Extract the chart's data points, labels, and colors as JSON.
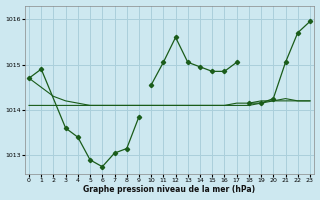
{
  "xlabel": "Graphe pression niveau de la mer (hPa)",
  "ylim": [
    1012.6,
    1016.3
  ],
  "xlim": [
    -0.3,
    23.3
  ],
  "yticks": [
    1013,
    1014,
    1015,
    1016
  ],
  "xticks": [
    0,
    1,
    2,
    3,
    4,
    5,
    6,
    7,
    8,
    9,
    10,
    11,
    12,
    13,
    14,
    15,
    16,
    17,
    18,
    19,
    20,
    21,
    22,
    23
  ],
  "bg_color": "#cde8f0",
  "grid_color": "#aacfdb",
  "line_color": "#1a5c1a",
  "series1_x": [
    0,
    1,
    3,
    4,
    5,
    6,
    7,
    8,
    9
  ],
  "series1_y": [
    1014.7,
    1014.9,
    1013.6,
    1013.4,
    1012.9,
    1012.75,
    1013.05,
    1013.15,
    1013.85
  ],
  "series2_x": [
    10,
    11,
    12,
    13,
    14,
    15,
    16,
    17
  ],
  "series2_y": [
    1014.55,
    1015.05,
    1015.6,
    1015.05,
    1014.95,
    1014.85,
    1014.85,
    1015.05
  ],
  "series3_x": [
    18,
    19,
    20,
    21,
    22,
    23
  ],
  "series3_y": [
    1014.15,
    1014.15,
    1014.25,
    1015.05,
    1015.7,
    1015.95
  ],
  "flat_x": [
    0,
    1,
    2,
    3,
    4,
    5,
    6,
    7,
    8,
    9,
    10,
    11,
    12,
    13,
    14,
    15,
    16,
    17,
    18,
    19,
    20,
    21,
    22,
    23
  ],
  "flat_y": [
    1014.1,
    1014.1,
    1014.1,
    1014.1,
    1014.1,
    1014.1,
    1014.1,
    1014.1,
    1014.1,
    1014.1,
    1014.1,
    1014.1,
    1014.1,
    1014.1,
    1014.1,
    1014.1,
    1014.1,
    1014.1,
    1014.1,
    1014.15,
    1014.2,
    1014.2,
    1014.2,
    1014.2
  ],
  "flat2_x": [
    0,
    1,
    2,
    3,
    4,
    5,
    6,
    7,
    8,
    9,
    10,
    11,
    12,
    13,
    14,
    15,
    16,
    17,
    18,
    19,
    20,
    21,
    22,
    23
  ],
  "flat2_y": [
    1014.7,
    1014.5,
    1014.3,
    1014.2,
    1014.15,
    1014.1,
    1014.1,
    1014.1,
    1014.1,
    1014.1,
    1014.1,
    1014.1,
    1014.1,
    1014.1,
    1014.1,
    1014.1,
    1014.1,
    1014.15,
    1014.15,
    1014.2,
    1014.2,
    1014.25,
    1014.2,
    1014.2
  ]
}
